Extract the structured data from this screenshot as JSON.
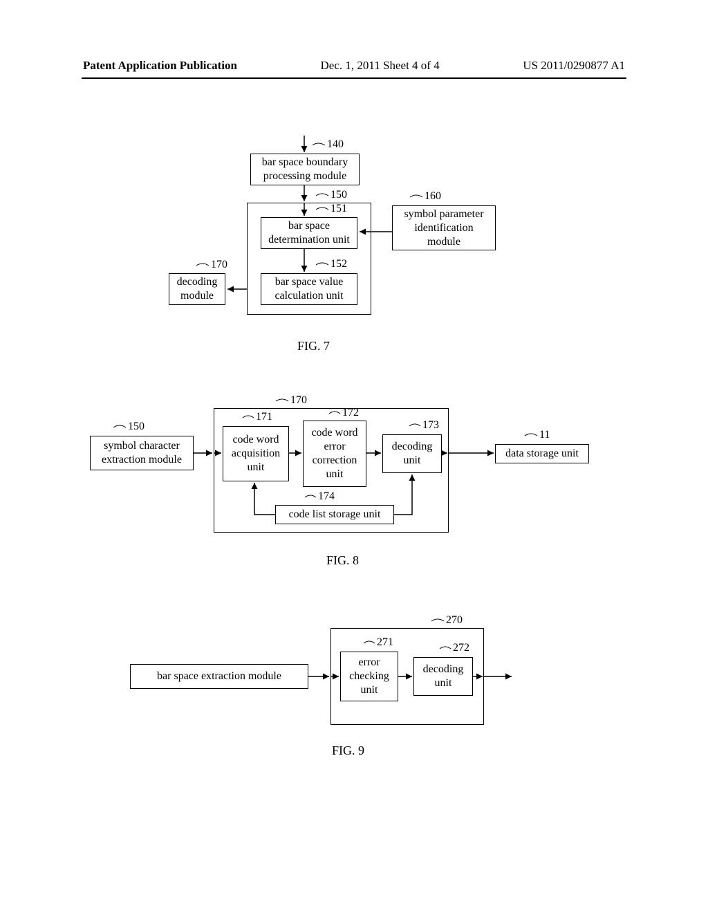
{
  "header": {
    "left": "Patent Application Publication",
    "mid": "Dec. 1, 2011  Sheet 4 of 4",
    "right": "US 2011/0290877 A1"
  },
  "fig7": {
    "caption": "FIG. 7",
    "refs": {
      "r140": "140",
      "r150": "150",
      "r151": "151",
      "r152": "152",
      "r160": "160",
      "r170": "170"
    },
    "boxes": {
      "b140": "bar space boundary\nprocessing module",
      "b151": "bar space\ndetermination unit",
      "b152": "bar space value\ncalculation unit",
      "b160": "symbol parameter\nidentification\nmodule",
      "b170": "decoding\nmodule"
    }
  },
  "fig8": {
    "caption": "FIG. 8",
    "refs": {
      "r150": "150",
      "r170": "170",
      "r171": "171",
      "r172": "172",
      "r173": "173",
      "r174": "174",
      "r11": "11"
    },
    "boxes": {
      "b150": "symbol character\nextraction module",
      "b171": "code word\nacquisition\nunit",
      "b172": "code word\nerror\ncorrection\nunit",
      "b173": "decoding\nunit",
      "b174": "code list storage unit",
      "b11": "data storage unit"
    }
  },
  "fig9": {
    "caption": "FIG. 9",
    "refs": {
      "r270": "270",
      "r271": "271",
      "r272": "272"
    },
    "boxes": {
      "bext": "bar space extraction module",
      "b271": "error\nchecking\nunit",
      "b272": "decoding\nunit"
    }
  }
}
